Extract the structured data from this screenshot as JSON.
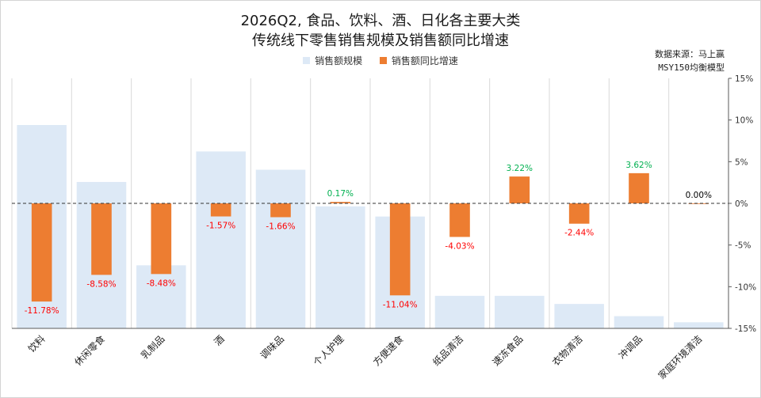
{
  "title_line1": "2026Q2, 食品、饮料、酒、日化各主要大类",
  "title_line2": "传统线下零售销售规模及销售额同比增速",
  "source_line1": "数据来源：马上赢",
  "source_line2": "MSY150均衡模型",
  "colors": {
    "bar_scale": "#dde9f6",
    "bar_growth": "#ed7d31",
    "label_positive": "#00b050",
    "label_negative": "#ff0000",
    "label_zero": "#000000",
    "zero_line": "#333333",
    "separator": "#d9d9d9"
  },
  "chart_data": {
    "type": "bar",
    "title": "2026Q2, 食品、饮料、酒、日化各主要大类 传统线下零售销售规模及销售额同比增速",
    "categories": [
      "饮料",
      "休闲零食",
      "乳制品",
      "酒",
      "调味品",
      "个人护理",
      "方便速食",
      "纸品清洁",
      "速冻食品",
      "衣物清洁",
      "冲调品",
      "家庭环境清洁"
    ],
    "series": [
      {
        "name": "销售额规模",
        "axis": "none-visible",
        "values": [
          100,
          72,
          31,
          87,
          78,
          60,
          55,
          16,
          16,
          12,
          6,
          3
        ]
      },
      {
        "name": "销售额同比增速",
        "axis": "right",
        "unit": "%",
        "values": [
          -11.78,
          -8.58,
          -8.48,
          -1.57,
          -1.66,
          0.17,
          -11.04,
          -4.03,
          3.22,
          -2.44,
          3.62,
          0.0
        ],
        "labels": [
          "-11.78%",
          "-8.58%",
          "-8.48%",
          "-1.57%",
          "-1.66%",
          "0.17%",
          "-11.04%",
          "-4.03%",
          "3.22%",
          "-2.44%",
          "3.62%",
          "0.00%"
        ]
      }
    ],
    "y_right": {
      "lim": [
        -15,
        15
      ],
      "ticks": [
        15,
        10,
        5,
        0,
        -5,
        -10,
        -15
      ],
      "tick_labels": [
        "15%",
        "10%",
        "5%",
        "0%",
        "-5%",
        "-10%",
        "-15%"
      ]
    },
    "zero_line": "dashed",
    "grid": "vertical-category-separators",
    "legend": "top-center"
  }
}
